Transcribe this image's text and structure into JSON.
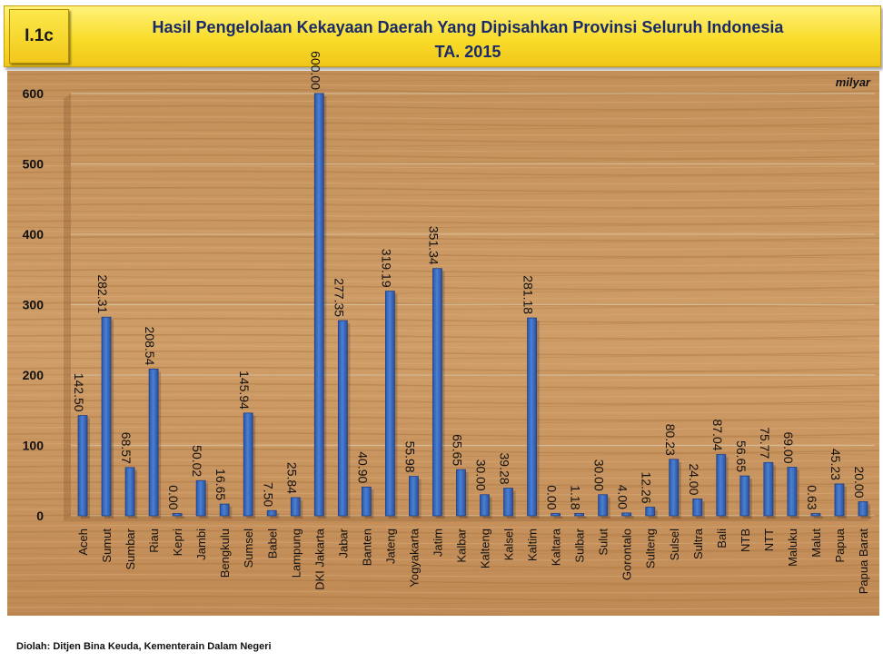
{
  "header": {
    "code": "I.1c",
    "title_line1": "Hasil Pengelolaan Kekayaan Daerah Yang Dipisahkan  Provinsi Seluruh Indonesia",
    "title_line2": "TA. 2015"
  },
  "footer": {
    "source": "Diolah: Ditjen Bina Keuda, Kementerain Dalam Negeri"
  },
  "colors": {
    "bar": "#3f73c4",
    "bar_dark": "#22489a",
    "wood_light": "#c99762",
    "wood_dark": "#a8733f"
  },
  "chart_data": {
    "type": "bar",
    "unit": "milyar",
    "ylim": [
      0,
      600
    ],
    "yticks": [
      0,
      100,
      200,
      300,
      400,
      500,
      600
    ],
    "grid": true,
    "categories": [
      "Aceh",
      "Sumut",
      "Sumbar",
      "Riau",
      "Kepri",
      "Jambi",
      "Bengkulu",
      "Sumsel",
      "Babel",
      "Lampung",
      "DKI Jakarta",
      "Jabar",
      "Banten",
      "Jateng",
      "Yogyakarta",
      "Jatim",
      "Kalbar",
      "Kalteng",
      "Kalsel",
      "Kaltim",
      "Kaltara",
      "Sulbar",
      "Sulut",
      "Gorontalo",
      "Sulteng",
      "Sulsel",
      "Sultra",
      "Bali",
      "NTB",
      "NTT",
      "Maluku",
      "Malut",
      "Papua",
      "Papua Barat"
    ],
    "values": [
      142.5,
      282.31,
      68.57,
      208.54,
      0.0,
      50.02,
      16.65,
      145.94,
      7.5,
      25.84,
      600.0,
      277.35,
      40.9,
      319.19,
      55.98,
      351.34,
      65.65,
      30.0,
      39.28,
      281.18,
      0.0,
      1.18,
      30.0,
      4.0,
      12.26,
      80.23,
      24.0,
      87.04,
      56.65,
      75.77,
      69.0,
      0.63,
      45.23,
      20.0
    ],
    "value_labels": [
      "142.50",
      "282.31",
      "68.57",
      "208.54",
      "0.00",
      "50.02",
      "16.65",
      "145.94",
      "7.50",
      "25.84",
      "600.00",
      "277.35",
      "40.90",
      "319.19",
      "55.98",
      "351.34",
      "65.65",
      "30.00",
      "39.28",
      "281.18",
      "0.00",
      "1.18",
      "30.00",
      "4.00",
      "12.26",
      "80.23",
      "24.00",
      "87.04",
      "56.65",
      "75.77",
      "69.00",
      "0.63",
      "45.23",
      "20.00"
    ]
  }
}
